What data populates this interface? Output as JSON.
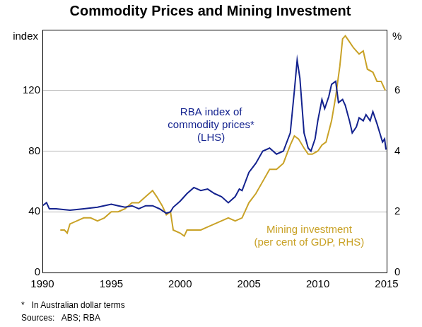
{
  "chart_data": {
    "type": "line",
    "title": "Commodity Prices and Mining Investment",
    "ylabel": "index",
    "y2label": "%",
    "xlim": [
      1990,
      2015
    ],
    "xticks": [
      1990,
      1995,
      2000,
      2005,
      2010,
      2015
    ],
    "ylim": [
      0,
      160
    ],
    "yticks": [
      0,
      40,
      80,
      120
    ],
    "y2lim": [
      0,
      8
    ],
    "y2ticks": [
      0,
      2,
      4,
      6
    ],
    "grid": true,
    "series": [
      {
        "color": "#14238f",
        "axis": "y",
        "x": [
          1990,
          1990.3,
          1990.5,
          1991,
          1992,
          1993,
          1994,
          1995,
          1995.5,
          1996,
          1996.5,
          1997,
          1997.5,
          1998,
          1998.5,
          1999,
          1999.3,
          1999.5,
          2000,
          2000.5,
          2001,
          2001.5,
          2002,
          2002.5,
          2003,
          2003.5,
          2004,
          2004.3,
          2004.5,
          2005,
          2005.5,
          2006,
          2006.5,
          2007,
          2007.5,
          2008,
          2008.3,
          2008.5,
          2008.7,
          2009,
          2009.3,
          2009.5,
          2009.8,
          2010,
          2010.3,
          2010.5,
          2010.8,
          2011,
          2011.3,
          2011.5,
          2011.8,
          2012,
          2012.3,
          2012.5,
          2012.8,
          2013,
          2013.3,
          2013.5,
          2013.8,
          2014,
          2014.3,
          2014.5,
          2014.7,
          2014.85,
          2014.95
        ],
        "values": [
          44,
          46,
          42,
          42,
          41,
          42,
          43,
          45,
          44,
          43,
          44,
          42,
          44,
          44,
          42,
          39,
          40,
          43,
          47,
          52,
          56,
          54,
          55,
          52,
          50,
          46,
          50,
          55,
          54,
          66,
          72,
          80,
          82,
          78,
          80,
          92,
          120,
          140,
          128,
          92,
          82,
          80,
          88,
          100,
          114,
          108,
          116,
          124,
          126,
          112,
          114,
          110,
          100,
          92,
          96,
          102,
          100,
          104,
          100,
          106,
          98,
          92,
          86,
          88,
          81
        ]
      },
      {
        "color": "#c9a227",
        "axis": "y2",
        "x": [
          1991.3,
          1991.6,
          1991.8,
          1992,
          1992.5,
          1993,
          1993.5,
          1994,
          1994.5,
          1995,
          1995.5,
          1996,
          1996.5,
          1997,
          1997.5,
          1998,
          1998.3,
          1998.7,
          1999,
          1999.3,
          1999.5,
          2000,
          2000.3,
          2000.5,
          2001,
          2001.5,
          2002,
          2002.5,
          2003,
          2003.5,
          2004,
          2004.5,
          2005,
          2005.5,
          2006,
          2006.5,
          2007,
          2007.5,
          2008,
          2008.3,
          2008.6,
          2009,
          2009.3,
          2009.6,
          2010,
          2010.3,
          2010.6,
          2011,
          2011.3,
          2011.6,
          2011.8,
          2012,
          2012.3,
          2012.6,
          2013,
          2013.3,
          2013.6,
          2014,
          2014.3,
          2014.6,
          2014.9
        ],
        "values": [
          1.4,
          1.4,
          1.3,
          1.6,
          1.7,
          1.8,
          1.8,
          1.7,
          1.8,
          2.0,
          2.0,
          2.1,
          2.3,
          2.3,
          2.5,
          2.7,
          2.5,
          2.2,
          1.9,
          2.0,
          1.4,
          1.3,
          1.2,
          1.4,
          1.4,
          1.4,
          1.5,
          1.6,
          1.7,
          1.8,
          1.7,
          1.8,
          2.3,
          2.6,
          3.0,
          3.4,
          3.4,
          3.6,
          4.2,
          4.5,
          4.4,
          4.1,
          3.9,
          3.9,
          4.0,
          4.2,
          4.3,
          5.0,
          5.8,
          6.8,
          7.7,
          7.8,
          7.6,
          7.4,
          7.2,
          7.3,
          6.7,
          6.6,
          6.3,
          6.3,
          6.0
        ]
      }
    ],
    "annotations": [
      {
        "text": [
          "RBA index of",
          "commodity prices*",
          "(LHS)"
        ],
        "color": "#14238f"
      },
      {
        "text": [
          "Mining investment",
          "(per cent of GDP, RHS)"
        ],
        "color": "#c9a227"
      }
    ],
    "notes": [
      "*   In Australian dollar terms",
      "Sources:   ABS; RBA"
    ]
  }
}
